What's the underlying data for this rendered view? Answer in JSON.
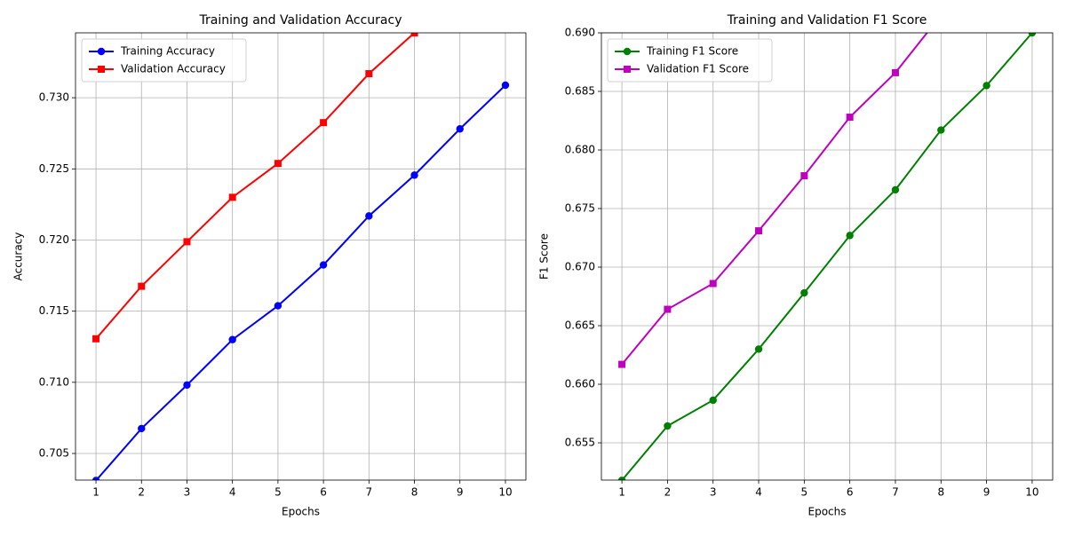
{
  "chart_data": [
    {
      "type": "line",
      "title": "Training and Validation Accuracy",
      "xlabel": "Epochs",
      "ylabel": "Accuracy",
      "x": [
        1,
        2,
        3,
        4,
        5,
        6,
        7,
        8,
        9,
        10
      ],
      "series": [
        {
          "name": "Training Accuracy",
          "color": "#0000ff",
          "marker": "circle",
          "values": [
            0.7031,
            0.70675,
            0.70981,
            0.713,
            0.71538,
            0.71825,
            0.72169,
            0.72456,
            0.72781,
            0.73088
          ]
        },
        {
          "name": "Validation Accuracy",
          "color": "#ff0000",
          "marker": "square",
          "values": [
            0.71306,
            0.71675,
            0.71988,
            0.723,
            0.72538,
            0.72825,
            0.73169,
            0.73456,
            null,
            null
          ]
        }
      ],
      "xlim": [
        0.55,
        10.45
      ],
      "xticks": [
        1,
        2,
        3,
        4,
        5,
        6,
        7,
        8,
        9,
        10
      ],
      "ylim": [
        0.70313,
        0.73456
      ],
      "yticks": [
        0.705,
        {
          "value": 0.71,
          "label": "0.710"
        },
        0.715,
        {
          "value": 0.72,
          "label": "0.720"
        },
        0.725,
        {
          "value": 0.73,
          "label": "0.730"
        }
      ],
      "grid": true,
      "legend": "upper left"
    },
    {
      "type": "line",
      "title": "Training and Validation F1 Score",
      "xlabel": "Epochs",
      "ylabel": "F1 Score",
      "x": [
        1,
        2,
        3,
        4,
        5,
        6,
        7,
        8,
        9,
        10
      ],
      "series": [
        {
          "name": "Training F1 Score",
          "color": "#008000",
          "marker": "circle",
          "values": [
            0.6518,
            0.65644,
            0.65864,
            0.663,
            0.6678,
            0.6727,
            0.6766,
            0.6817,
            0.6855,
            0.69
          ]
        },
        {
          "name": "Validation F1 Score",
          "color": "#bf00bf",
          "marker": "square",
          "values": [
            0.6617,
            0.6664,
            0.6686,
            0.6731,
            0.6778,
            0.6828,
            0.6866,
            0.6915,
            null,
            null
          ]
        }
      ],
      "xlim": [
        0.55,
        10.45
      ],
      "xticks": [
        1,
        2,
        3,
        4,
        5,
        6,
        7,
        8,
        9,
        10
      ],
      "ylim": [
        0.65182,
        0.69
      ],
      "yticks": [
        0.655,
        {
          "value": 0.66,
          "label": "0.660"
        },
        0.665,
        {
          "value": 0.67,
          "label": "0.670"
        },
        0.675,
        {
          "value": 0.68,
          "label": "0.680"
        },
        0.685,
        {
          "value": 0.69,
          "label": "0.690"
        }
      ],
      "grid": true,
      "legend": "upper left"
    }
  ]
}
